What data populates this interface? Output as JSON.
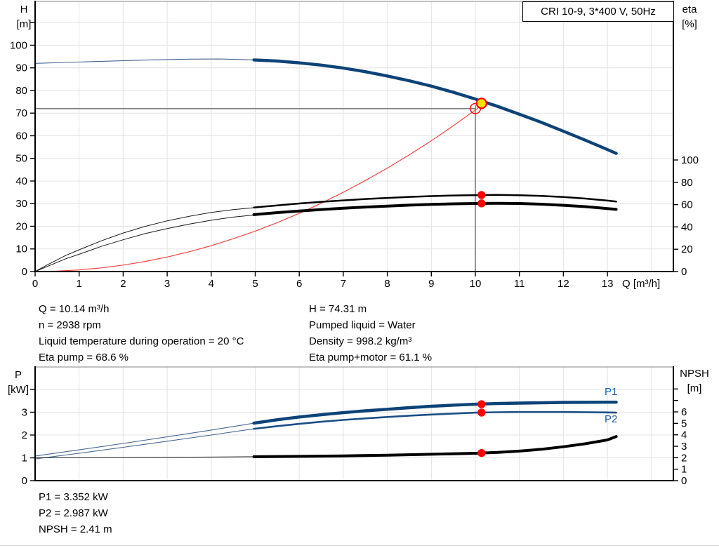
{
  "title": "CRI 10-9, 3*400 V, 50Hz",
  "axis_labels": {
    "h": "H",
    "h_unit": "[m]",
    "eta": "eta",
    "eta_unit": "[%]",
    "q": "Q [m³/h]",
    "p": "P",
    "p_unit": "[kW]",
    "npsh": "NPSH",
    "npsh_unit": "[m]"
  },
  "curve_labels": {
    "p1": "P1",
    "p2": "P2"
  },
  "operating_point_summary": {
    "left": [
      "Q = 10.14 m³/h",
      "n = 2938 rpm",
      "Liquid temperature during operation = 20 °C",
      "Eta pump = 68.6 %"
    ],
    "right": [
      "H = 74.31 m",
      "Pumped liquid = Water",
      "Density = 998.2 kg/m³",
      "Eta pump+motor = 61.1 %"
    ]
  },
  "power_summary": [
    "P1 = 3.352 kW",
    "P2 = 2.987 kW",
    "NPSH = 2.41 m"
  ],
  "colors": {
    "thick_blue": "#0d4377",
    "mid_blue": "#1b4f86",
    "thin_blue": "#48668e",
    "label_blue": "#1e5fa8",
    "red": "#ff0000",
    "curve_red": "#ef4444",
    "yellow": "#ffe100",
    "grid": "#e3e3e3",
    "frame_gray": "#9c9c9c",
    "crosshair_gray": "#6b6b6b",
    "black": "#000000"
  },
  "chart_data": [
    {
      "type": "line",
      "title": "CRI 10-9, 3*400 V, 50Hz",
      "xlabel": "Q [m³/h]",
      "ylabel_left": "H [m]",
      "ylabel_right": "eta [%]",
      "xlim": [
        0,
        14.5
      ],
      "ylim_left": [
        0,
        119
      ],
      "ylim_right_labeled": [
        0,
        100
      ],
      "x_ticks": [
        0,
        1,
        2,
        3,
        4,
        5,
        6,
        7,
        8,
        9,
        10,
        11,
        12,
        13
      ],
      "left_ticks": [
        0,
        10,
        20,
        30,
        40,
        50,
        60,
        70,
        80,
        90,
        100
      ],
      "left_ticks_unlabeled": [
        110
      ],
      "right_ticks": [
        0,
        20,
        40,
        60,
        80,
        100
      ],
      "right_ticks_unlabeled": [],
      "series": [
        {
          "name": "H curve (low-flow, thin)",
          "axis": "left",
          "style": "thin-blue",
          "points": [
            [
              0,
              92
            ],
            [
              0.7,
              92.4
            ],
            [
              1.5,
              92.9
            ],
            [
              2.5,
              93.45
            ],
            [
              3.5,
              93.85
            ],
            [
              4.2,
              93.9
            ],
            [
              5.1,
              93.45
            ]
          ]
        },
        {
          "name": "H curve",
          "axis": "left",
          "style": "thick-blue",
          "points": [
            [
              4.97,
              93.5
            ],
            [
              5.5,
              93.0
            ],
            [
              6,
              92.2
            ],
            [
              6.5,
              91.2
            ],
            [
              7,
              89.9
            ],
            [
              7.5,
              88.3
            ],
            [
              8,
              86.4
            ],
            [
              8.5,
              84.3
            ],
            [
              9,
              81.9
            ],
            [
              9.5,
              79.2
            ],
            [
              10,
              76.2
            ],
            [
              10.5,
              73.0
            ],
            [
              11,
              69.5
            ],
            [
              11.5,
              65.9
            ],
            [
              12,
              62.0
            ],
            [
              12.5,
              58.0
            ],
            [
              13,
              53.9
            ],
            [
              13.2,
              52.2
            ]
          ]
        },
        {
          "name": "system curve",
          "axis": "left",
          "style": "thin-red",
          "points": [
            [
              0,
              0
            ],
            [
              0.5,
              0.18
            ],
            [
              1,
              0.71
            ],
            [
              1.5,
              1.6
            ],
            [
              2,
              2.85
            ],
            [
              2.5,
              4.46
            ],
            [
              3,
              6.43
            ],
            [
              3.5,
              8.75
            ],
            [
              4,
              11.4
            ],
            [
              4.5,
              14.5
            ],
            [
              5,
              17.85
            ],
            [
              5.5,
              21.6
            ],
            [
              6,
              25.7
            ],
            [
              6.5,
              30.2
            ],
            [
              7,
              35.0
            ],
            [
              7.5,
              40.2
            ],
            [
              8,
              45.7
            ],
            [
              8.5,
              51.6
            ],
            [
              9,
              57.8
            ],
            [
              9.5,
              64.4
            ],
            [
              10.03,
              71.8
            ],
            [
              10.2,
              74.3
            ]
          ]
        },
        {
          "name": "eta pump (low-flow, thin)",
          "axis": "right",
          "style": "thin-black",
          "points": [
            [
              0,
              0
            ],
            [
              0.3,
              6.5
            ],
            [
              0.7,
              14.5
            ],
            [
              1,
              19.5
            ],
            [
              1.5,
              27.5
            ],
            [
              2,
              34.5
            ],
            [
              2.5,
              40.5
            ],
            [
              3,
              45.5
            ],
            [
              3.5,
              49.5
            ],
            [
              4,
              53
            ],
            [
              4.5,
              55.5
            ],
            [
              5.1,
              57.7
            ]
          ]
        },
        {
          "name": "eta pump",
          "axis": "right",
          "style": "mid-black",
          "points": [
            [
              4.97,
              57.4
            ],
            [
              5.5,
              59.3
            ],
            [
              6,
              61
            ],
            [
              6.5,
              62.5
            ],
            [
              7,
              63.8
            ],
            [
              7.5,
              65
            ],
            [
              8,
              66
            ],
            [
              8.5,
              66.9
            ],
            [
              9,
              67.6
            ],
            [
              9.5,
              68.2
            ],
            [
              10,
              68.5
            ],
            [
              10.5,
              68.7
            ],
            [
              11,
              68.4
            ],
            [
              11.5,
              67.8
            ],
            [
              12,
              66.8
            ],
            [
              12.5,
              65.4
            ],
            [
              13,
              63.6
            ],
            [
              13.2,
              62.7
            ]
          ]
        },
        {
          "name": "eta pump+motor (low-flow, thin)",
          "axis": "right",
          "style": "thin-black",
          "points": [
            [
              0,
              0
            ],
            [
              0.3,
              5
            ],
            [
              0.7,
              11.5
            ],
            [
              1,
              15.5
            ],
            [
              1.5,
              22.5
            ],
            [
              2,
              28.5
            ],
            [
              2.5,
              34
            ],
            [
              3,
              38.5
            ],
            [
              3.5,
              42.5
            ],
            [
              4,
              46
            ],
            [
              4.5,
              48.8
            ],
            [
              5.1,
              51.2
            ]
          ]
        },
        {
          "name": "eta pump+motor",
          "axis": "right",
          "style": "thick-black",
          "points": [
            [
              4.97,
              51
            ],
            [
              5.5,
              52.8
            ],
            [
              6,
              54.3
            ],
            [
              6.5,
              55.6
            ],
            [
              7,
              56.8
            ],
            [
              7.5,
              57.8
            ],
            [
              8,
              58.7
            ],
            [
              8.5,
              59.5
            ],
            [
              9,
              60.2
            ],
            [
              9.5,
              60.7
            ],
            [
              10,
              61.0
            ],
            [
              10.5,
              61.2
            ],
            [
              11,
              61.0
            ],
            [
              11.5,
              60.4
            ],
            [
              12,
              59.4
            ],
            [
              12.5,
              58.2
            ],
            [
              13,
              56.5
            ],
            [
              13.2,
              55.7
            ]
          ]
        }
      ],
      "markers": {
        "operating_point": {
          "q": 10.14,
          "axis": "left",
          "value": 74.31
        },
        "requested_point": {
          "q": 10.0,
          "axis": "left",
          "value": 72.0
        },
        "crosshair": {
          "q": 10.0,
          "axis": "left",
          "value": 72.0
        },
        "dots": [
          {
            "q": 10.14,
            "axis": "right",
            "value": 68.6
          },
          {
            "q": 10.14,
            "axis": "right",
            "value": 61.1
          }
        ]
      }
    },
    {
      "type": "line",
      "xlabel": "",
      "ylabel_left": "P [kW]",
      "ylabel_right": "NPSH [m]",
      "xlim": [
        0,
        14.5
      ],
      "ylim_left": [
        0,
        5
      ],
      "ylim_right_labeled": [
        0,
        6
      ],
      "x_ticks": [],
      "left_ticks": [
        0,
        1,
        2,
        3
      ],
      "left_ticks_unlabeled": [
        4
      ],
      "right_ticks": [
        0,
        1,
        2,
        3,
        4,
        5,
        6
      ],
      "right_ticks_unlabeled": [
        7,
        8
      ],
      "series": [
        {
          "name": "P1 (low-flow, thin)",
          "axis": "left",
          "style": "thin-blue",
          "points": [
            [
              0,
              1.08
            ],
            [
              1,
              1.35
            ],
            [
              2,
              1.63
            ],
            [
              3,
              1.92
            ],
            [
              4,
              2.22
            ],
            [
              5.1,
              2.56
            ]
          ]
        },
        {
          "name": "P1",
          "axis": "left",
          "style": "thick-blue",
          "points": [
            [
              4.97,
              2.52
            ],
            [
              5.5,
              2.67
            ],
            [
              6,
              2.79
            ],
            [
              6.5,
              2.89
            ],
            [
              7,
              2.98
            ],
            [
              7.5,
              3.06
            ],
            [
              8,
              3.13
            ],
            [
              8.5,
              3.2
            ],
            [
              9,
              3.26
            ],
            [
              9.5,
              3.31
            ],
            [
              10,
              3.35
            ],
            [
              10.5,
              3.38
            ],
            [
              11,
              3.4
            ],
            [
              12,
              3.43
            ],
            [
              13,
              3.44
            ],
            [
              13.2,
              3.44
            ]
          ]
        },
        {
          "name": "P2 (low-flow, thin)",
          "axis": "left",
          "style": "thin-blue",
          "points": [
            [
              0,
              0.95
            ],
            [
              1,
              1.2
            ],
            [
              2,
              1.46
            ],
            [
              3,
              1.73
            ],
            [
              4,
              2.0
            ],
            [
              5.1,
              2.31
            ]
          ]
        },
        {
          "name": "P2",
          "axis": "left",
          "style": "mid-blue",
          "points": [
            [
              4.97,
              2.27
            ],
            [
              5.5,
              2.39
            ],
            [
              6,
              2.49
            ],
            [
              6.5,
              2.58
            ],
            [
              7,
              2.66
            ],
            [
              7.5,
              2.73
            ],
            [
              8,
              2.79
            ],
            [
              8.5,
              2.85
            ],
            [
              9,
              2.9
            ],
            [
              9.5,
              2.94
            ],
            [
              10,
              2.98
            ],
            [
              10.5,
              3.0
            ],
            [
              11,
              3.01
            ],
            [
              12,
              3.01
            ],
            [
              13,
              2.99
            ],
            [
              13.2,
              2.98
            ]
          ]
        },
        {
          "name": "NPSH (low-flow, thin)",
          "axis": "right",
          "style": "thin-black",
          "points": [
            [
              0,
              2.0
            ],
            [
              1,
              2.0
            ],
            [
              2,
              2.02
            ],
            [
              3,
              2.04
            ],
            [
              4,
              2.06
            ],
            [
              5.1,
              2.09
            ]
          ]
        },
        {
          "name": "NPSH",
          "axis": "right",
          "style": "thick-black",
          "points": [
            [
              4.97,
              2.09
            ],
            [
              6,
              2.12
            ],
            [
              7,
              2.16
            ],
            [
              8,
              2.22
            ],
            [
              9,
              2.3
            ],
            [
              10,
              2.39
            ],
            [
              10.5,
              2.46
            ],
            [
              11,
              2.58
            ],
            [
              11.5,
              2.74
            ],
            [
              12,
              2.96
            ],
            [
              12.5,
              3.22
            ],
            [
              13,
              3.55
            ],
            [
              13.2,
              3.85
            ]
          ]
        }
      ],
      "markers": {
        "dots": [
          {
            "q": 10.14,
            "axis": "left",
            "value": 3.352
          },
          {
            "q": 10.14,
            "axis": "left",
            "value": 2.987
          },
          {
            "q": 10.14,
            "axis": "right",
            "value": 2.41
          }
        ]
      }
    }
  ]
}
